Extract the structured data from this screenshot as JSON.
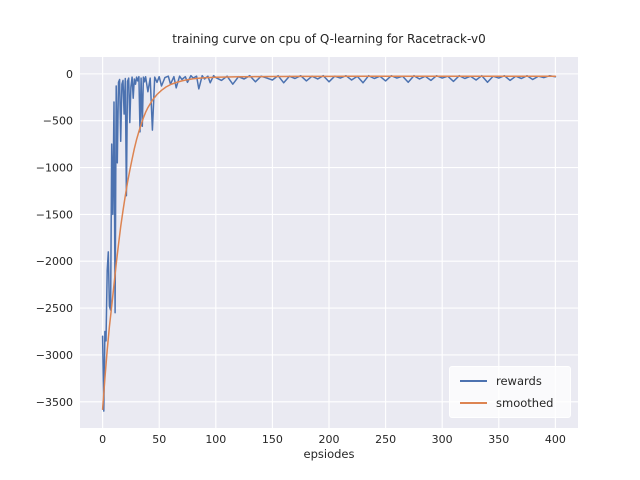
{
  "chart_data": {
    "type": "line",
    "title": "training curve on cpu of Q-learning for Racetrack-v0",
    "xlabel": "epsiodes",
    "ylabel": "",
    "xlim": [
      -20,
      420
    ],
    "ylim": [
      -3780,
      180
    ],
    "xticks": [
      0,
      50,
      100,
      150,
      200,
      250,
      300,
      350,
      400
    ],
    "xticklabels": [
      "0",
      "50",
      "100",
      "150",
      "200",
      "250",
      "300",
      "350",
      "400"
    ],
    "yticks": [
      0,
      -500,
      -1000,
      -1500,
      -2000,
      -2500,
      -3000,
      -3500
    ],
    "yticklabels": [
      "0",
      "−500",
      "−1000",
      "−1500",
      "−2000",
      "−2500",
      "−3000",
      "−3500"
    ],
    "grid": true,
    "legend_position": "lower right",
    "plot_bg": "#eaeaf2",
    "grid_color": "#ffffff",
    "tick_color": "#262626",
    "series": [
      {
        "name": "rewards",
        "color": "#4c72b0",
        "x": [
          0,
          1,
          2,
          3,
          4,
          5,
          6,
          7,
          8,
          9,
          10,
          11,
          12,
          13,
          14,
          15,
          16,
          17,
          18,
          19,
          20,
          21,
          22,
          23,
          24,
          25,
          26,
          27,
          28,
          29,
          30,
          31,
          32,
          33,
          34,
          35,
          36,
          37,
          38,
          40,
          42,
          44,
          46,
          48,
          50,
          52,
          55,
          58,
          60,
          63,
          65,
          68,
          70,
          73,
          75,
          78,
          80,
          83,
          85,
          88,
          90,
          93,
          95,
          98,
          100,
          105,
          110,
          115,
          120,
          125,
          130,
          135,
          140,
          145,
          150,
          155,
          160,
          165,
          170,
          175,
          180,
          185,
          190,
          195,
          200,
          205,
          210,
          215,
          220,
          225,
          230,
          235,
          240,
          245,
          250,
          255,
          260,
          265,
          270,
          275,
          280,
          285,
          290,
          295,
          300,
          305,
          310,
          315,
          320,
          325,
          330,
          335,
          340,
          345,
          350,
          355,
          360,
          365,
          370,
          375,
          380,
          385,
          390,
          395,
          400
        ],
        "y": [
          -2800,
          -3600,
          -2750,
          -2850,
          -2100,
          -1900,
          -2480,
          -2520,
          -750,
          -1500,
          -300,
          -2550,
          -130,
          -950,
          -90,
          -60,
          -720,
          -110,
          -70,
          -430,
          -50,
          -1300,
          -80,
          -45,
          -520,
          -140,
          -35,
          -260,
          -55,
          -110,
          -35,
          -75,
          -30,
          -620,
          -45,
          -560,
          -35,
          -85,
          -30,
          -190,
          -45,
          -600,
          -35,
          -90,
          -30,
          -130,
          -40,
          -25,
          -110,
          -30,
          -150,
          -25,
          -60,
          -30,
          -90,
          -20,
          -45,
          -25,
          -160,
          -20,
          -55,
          -25,
          -95,
          -20,
          -40,
          -70,
          -25,
          -110,
          -30,
          -55,
          -20,
          -85,
          -25,
          -45,
          -65,
          -20,
          -95,
          -25,
          -50,
          -20,
          -75,
          -25,
          -55,
          -20,
          -85,
          -25,
          -45,
          -20,
          -65,
          -25,
          -95,
          -20,
          -50,
          -25,
          -75,
          -20,
          -45,
          -25,
          -90,
          -20,
          -55,
          -25,
          -70,
          -20,
          -45,
          -25,
          -80,
          -20,
          -50,
          -25,
          -65,
          -20,
          -90,
          -25,
          -45,
          -20,
          -70,
          -25,
          -50,
          -20,
          -60,
          -25,
          -40,
          -20,
          -30
        ]
      },
      {
        "name": "smoothed",
        "color": "#dd8452",
        "x": [
          0,
          2,
          4,
          6,
          8,
          10,
          12,
          14,
          16,
          18,
          20,
          22,
          24,
          26,
          28,
          30,
          32,
          34,
          36,
          38,
          40,
          44,
          48,
          52,
          56,
          60,
          65,
          70,
          75,
          80,
          85,
          90,
          95,
          100,
          110,
          120,
          130,
          140,
          150,
          160,
          170,
          180,
          190,
          200,
          220,
          240,
          260,
          280,
          300,
          320,
          340,
          360,
          380,
          400
        ],
        "y": [
          -3580,
          -3250,
          -2950,
          -2700,
          -2480,
          -2250,
          -2030,
          -1820,
          -1630,
          -1460,
          -1300,
          -1160,
          -1030,
          -910,
          -800,
          -700,
          -615,
          -540,
          -470,
          -410,
          -360,
          -280,
          -220,
          -175,
          -140,
          -115,
          -92,
          -75,
          -62,
          -53,
          -47,
          -42,
          -39,
          -36,
          -33,
          -31,
          -30,
          -29,
          -28,
          -28,
          -27,
          -27,
          -27,
          -27,
          -26,
          -26,
          -26,
          -26,
          -25,
          -25,
          -25,
          -25,
          -25,
          -25
        ]
      }
    ]
  },
  "legend": {
    "items": [
      {
        "label": "rewards",
        "color": "#4c72b0"
      },
      {
        "label": "smoothed",
        "color": "#dd8452"
      }
    ]
  }
}
